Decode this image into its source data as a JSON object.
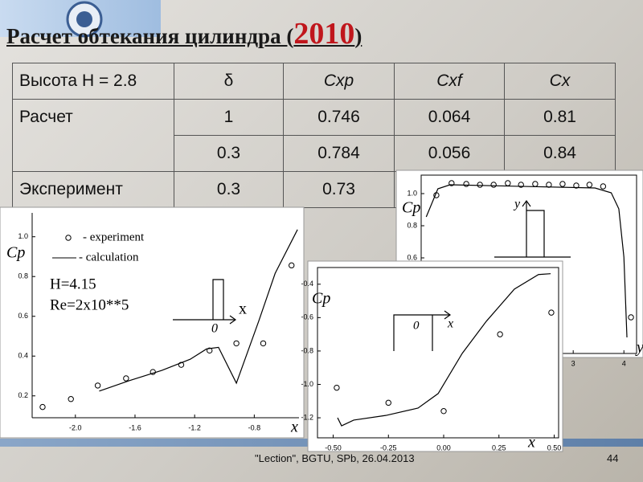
{
  "title": {
    "text": "Расчет обтекания цилиндра (",
    "year": "2010",
    "close": ")"
  },
  "table": {
    "header": [
      "Высота H = 2.8",
      "δ",
      "Cxp",
      "Cxf",
      "Cx"
    ],
    "rows": [
      [
        "Расчет",
        "1",
        "0.746",
        "0.064",
        "0.81"
      ],
      [
        "0.3",
        "0.784",
        "0.056",
        "0.84"
      ],
      [
        "Эксперимент",
        "0.3",
        "0.73"
      ]
    ]
  },
  "footer": {
    "text": "\"Lection\", BGTU, SPb,  26.04.2013",
    "page": "44"
  },
  "chart_data": [
    {
      "type": "line",
      "y_label": "Cp",
      "x_label": "x",
      "xlim": [
        -2.29,
        -0.5
      ],
      "ylim": [
        0.09,
        1.12
      ],
      "xticks": [
        {
          "value": -2,
          "label": "-2.0"
        },
        -1.6,
        -1.2,
        -0.8
      ],
      "yticks": [
        0.2,
        0.4,
        0.6,
        0.8,
        {
          "value": 1,
          "label": "1.0"
        }
      ],
      "annotations": [
        "H=4.15",
        "Re=2x10**5",
        "x",
        "0"
      ],
      "series": [
        {
          "name": "- experiment",
          "mode": "markers",
          "color": "#000000",
          "x": [
            -2.22,
            -2.03,
            -1.85,
            -1.66,
            -1.48,
            -1.29,
            -1.1,
            -0.92,
            -0.74,
            -0.55
          ],
          "y": [
            0.144,
            0.184,
            0.252,
            0.288,
            0.32,
            0.356,
            0.428,
            0.464,
            0.464,
            0.856
          ]
        },
        {
          "name": "- calculation",
          "mode": "line",
          "color": "#000000",
          "x": [
            -1.84,
            -1.64,
            -1.42,
            -1.23,
            -1.12,
            -1.04,
            -0.92,
            -0.77,
            -0.66,
            -0.51
          ],
          "y": [
            0.224,
            0.276,
            0.328,
            0.384,
            0.436,
            0.444,
            0.264,
            0.576,
            0.816,
            1.036
          ]
        }
      ]
    },
    {
      "type": "line",
      "y_label": "Cp",
      "x_label": "y",
      "xlim": [
        0,
        4.25
      ],
      "ylim": [
        0.005,
        1.115
      ],
      "xticks": [
        3,
        4
      ],
      "yticks": [
        0.6,
        0.8,
        {
          "value": 1,
          "label": "1.0"
        }
      ],
      "annotations": [
        "y"
      ],
      "series": [
        {
          "mode": "markers",
          "color": "#000000",
          "x": [
            0.3,
            0.6,
            0.89,
            1.16,
            1.43,
            1.71,
            1.97,
            2.25,
            2.52,
            2.79,
            3.06,
            3.32,
            3.59,
            4.14
          ],
          "y": [
            0.99,
            1.065,
            1.06,
            1.055,
            1.055,
            1.065,
            1.055,
            1.06,
            1.055,
            1.06,
            1.05,
            1.055,
            1.045,
            0.23
          ]
        },
        {
          "mode": "line",
          "color": "#000000",
          "x": [
            0.1,
            0.33,
            0.57,
            3.43,
            3.75,
            3.9,
            4.0,
            4.06
          ],
          "y": [
            0.855,
            1.03,
            1.055,
            1.035,
            1.005,
            0.905,
            0.605,
            0.105
          ]
        }
      ]
    },
    {
      "type": "line",
      "y_label": "Cp",
      "x_label": "x",
      "xlim": [
        -0.571,
        0.52
      ],
      "ylim": [
        -1.32,
        -0.3
      ],
      "xticks": [
        {
          "value": -0.5,
          "label": "-0.50"
        },
        -0.25,
        {
          "value": 0,
          "label": "0.00"
        },
        0.25,
        {
          "value": 0.5,
          "label": "0.50"
        }
      ],
      "yticks": [
        -1.2,
        {
          "value": -1,
          "label": "-1.0"
        },
        -0.8,
        -0.6,
        -0.4
      ],
      "annotations": [
        "0",
        "x"
      ],
      "series": [
        {
          "mode": "markers",
          "color": "#000000",
          "x": [
            -0.484,
            -0.25,
            0.0,
            0.255,
            0.487
          ],
          "y": [
            -1.02,
            -1.11,
            -1.16,
            -0.7,
            -0.57
          ]
        },
        {
          "mode": "line",
          "color": "#000000",
          "x": [
            -0.48,
            -0.462,
            -0.407,
            -0.262,
            -0.116,
            -0.025,
            0.084,
            0.193,
            0.32,
            0.429,
            0.484
          ],
          "y": [
            -1.2,
            -1.248,
            -1.214,
            -1.186,
            -1.142,
            -1.055,
            -0.814,
            -0.622,
            -0.429,
            -0.342,
            -0.337
          ]
        }
      ]
    }
  ]
}
